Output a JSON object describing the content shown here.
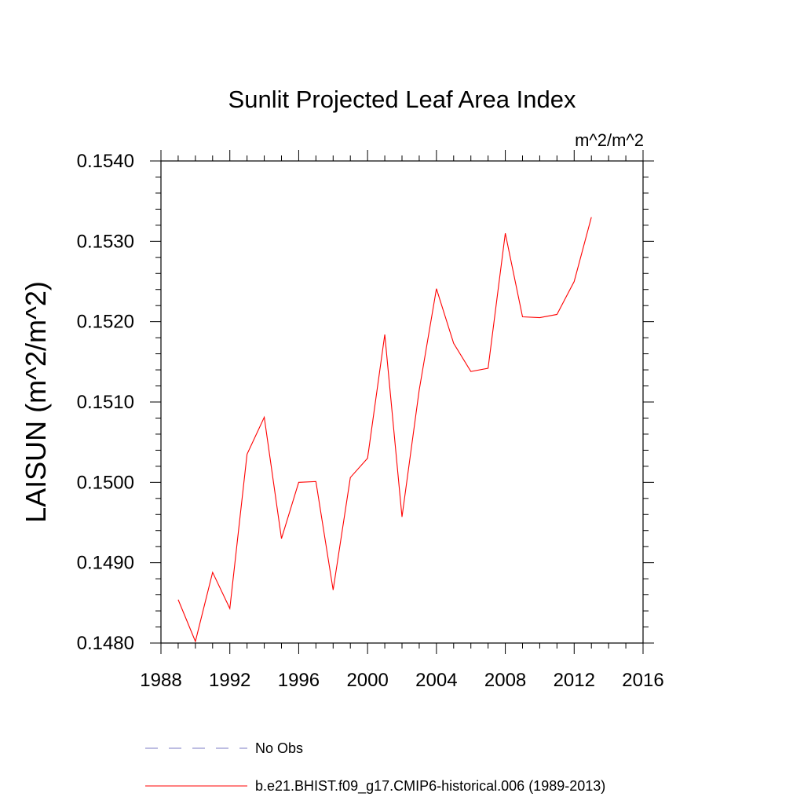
{
  "chart_data": {
    "type": "line",
    "title": "Sunlit Projected Leaf Area Index",
    "units_label": "m^2/m^2",
    "xlabel": "",
    "ylabel": "LAISUN  (m^2/m^2)",
    "xlim": [
      1988,
      2016
    ],
    "ylim": [
      0.148,
      0.154
    ],
    "x_ticks": [
      1988,
      1992,
      1996,
      2000,
      2004,
      2008,
      2012,
      2016
    ],
    "x_tick_labels": [
      "1988",
      "1992",
      "1996",
      "2000",
      "2004",
      "2008",
      "2012",
      "2016"
    ],
    "y_ticks": [
      0.148,
      0.149,
      0.15,
      0.151,
      0.152,
      0.153,
      0.154
    ],
    "y_tick_labels": [
      "0.1480",
      "0.1490",
      "0.1500",
      "0.1510",
      "0.1520",
      "0.1530",
      "0.1540"
    ],
    "grid": false,
    "legend_position": "bottom",
    "series": [
      {
        "name": "No Obs",
        "color": "#7b7bc4",
        "style": "dashed",
        "x": [],
        "y": []
      },
      {
        "name": "b.e21.BHIST.f09_g17.CMIP6-historical.006 (1989-2013)",
        "color": "#ff0000",
        "style": "solid",
        "x": [
          1989,
          1990,
          1991,
          1992,
          1993,
          1994,
          1995,
          1996,
          1997,
          1998,
          1999,
          2000,
          2001,
          2002,
          2003,
          2004,
          2005,
          2006,
          2007,
          2008,
          2009,
          2010,
          2011,
          2012,
          2013
        ],
        "y": [
          0.14854,
          0.14802,
          0.14888,
          0.14843,
          0.15035,
          0.15081,
          0.1493,
          0.15,
          0.15001,
          0.14866,
          0.15006,
          0.1503,
          0.15184,
          0.14957,
          0.15115,
          0.15241,
          0.15173,
          0.15138,
          0.15142,
          0.1531,
          0.15206,
          0.15205,
          0.15209,
          0.1525,
          0.1533
        ]
      }
    ]
  }
}
